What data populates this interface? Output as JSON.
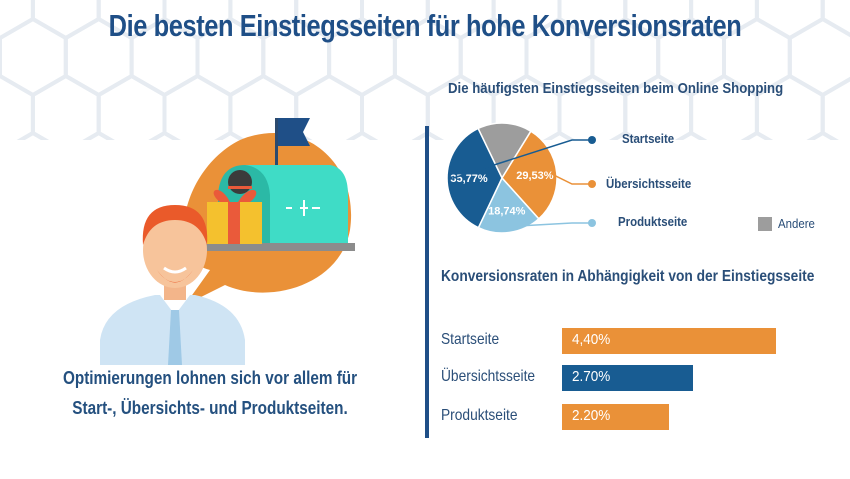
{
  "title": "Die besten Einstiegsseiten für hohe Konversionsraten",
  "caption": {
    "line1": "Optimierungen lohnen sich vor allem für",
    "line2": "Start-, Übersichts- und Produktseiten."
  },
  "colors": {
    "navy": "#1f4f87",
    "orange": "#ea9138",
    "blue": "#185c92",
    "lightblue": "#8cc4e0",
    "gray": "#9d9d9d"
  },
  "chart_data": [
    {
      "type": "pie",
      "title": "Die häufigsten Einstiegsseiten beim Online Shopping",
      "slices": [
        {
          "label": "Andere",
          "value": 15.96,
          "color": "#9d9d9d",
          "value_label": ""
        },
        {
          "label": "Übersichtsseite",
          "value": 29.53,
          "color": "#ea9138",
          "value_label": "29,53%"
        },
        {
          "label": "Produktseite",
          "value": 18.74,
          "color": "#8cc4e0",
          "value_label": "18,74%"
        },
        {
          "label": "Startseite",
          "value": 35.77,
          "color": "#185c92",
          "value_label": "35,77%"
        }
      ],
      "legend": [
        {
          "label": "Startseite"
        },
        {
          "label": "Übersichtsseite"
        },
        {
          "label": "Produktseite"
        },
        {
          "label": "Andere"
        }
      ]
    },
    {
      "type": "bar",
      "title": "Konversionsraten in Abhängigkeit von der Einstiegsseite",
      "categories": [
        "Startseite",
        "Übersichtsseite",
        "Produktseite"
      ],
      "values": [
        4.4,
        2.7,
        2.2
      ],
      "value_labels": [
        "4,40%",
        "2.70%",
        "2.20%"
      ],
      "colors": [
        "#ea9138",
        "#185c92",
        "#ea9138"
      ]
    }
  ]
}
